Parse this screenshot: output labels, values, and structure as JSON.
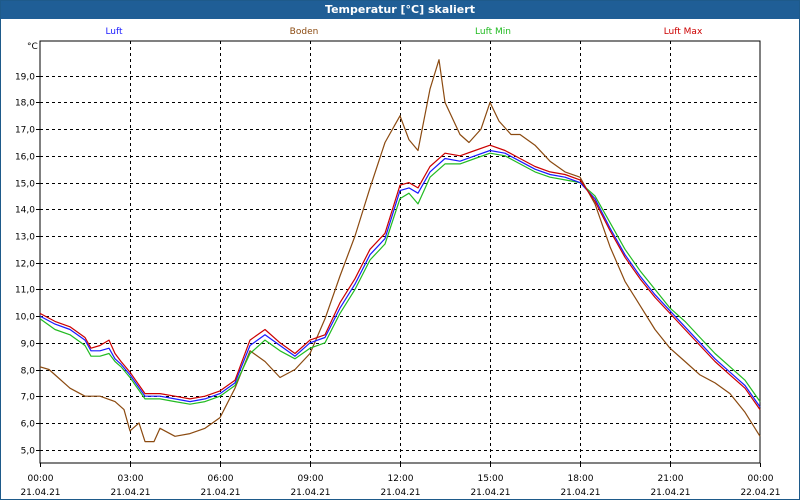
{
  "window": {
    "title": "Temperatur [°C] skaliert"
  },
  "chart_data": {
    "type": "line",
    "title": "Temperatur [°C] skaliert",
    "ylabel": "°C",
    "xlabel": "",
    "ylim": [
      4.5,
      20.3
    ],
    "xlim": [
      0,
      24
    ],
    "yticks": [
      5.0,
      6.0,
      7.0,
      8.0,
      9.0,
      10.0,
      11.0,
      12.0,
      13.0,
      14.0,
      15.0,
      16.0,
      17.0,
      18.0,
      19.0
    ],
    "ytick_labels": [
      "5,0",
      "6,0",
      "7,0",
      "8,0",
      "9,0",
      "10,0",
      "11,0",
      "12,0",
      "13,0",
      "14,0",
      "15,0",
      "16,0",
      "17,0",
      "18,0",
      "19,0"
    ],
    "xticks": [
      0,
      3,
      6,
      9,
      12,
      15,
      18,
      21,
      24
    ],
    "xtick_time_labels": [
      "00:00",
      "03:00",
      "06:00",
      "09:00",
      "12:00",
      "15:00",
      "18:00",
      "21:00",
      "00:00"
    ],
    "xtick_date_labels": [
      "21.04.21",
      "21.04.21",
      "21.04.21",
      "21.04.21",
      "21.04.21",
      "21.04.21",
      "21.04.21",
      "21.04.21",
      "22.04.21"
    ],
    "grid": true,
    "legend_position": "top",
    "colors": {
      "Luft": "#1a1aff",
      "Boden": "#8b4a10",
      "Luft Min": "#22bb22",
      "Luft Max": "#cc0000"
    },
    "series": [
      {
        "name": "Luft",
        "x": [
          0,
          0.5,
          1,
          1.5,
          1.7,
          2,
          2.3,
          2.5,
          2.7,
          3,
          3.5,
          4,
          4.5,
          5,
          5.5,
          6,
          6.5,
          7,
          7.5,
          8,
          8.5,
          9,
          9.5,
          10,
          10.5,
          11,
          11.5,
          12,
          12.3,
          12.6,
          12.8,
          13,
          13.5,
          14,
          14.5,
          15,
          15.5,
          16,
          16.5,
          17,
          17.5,
          18,
          18.5,
          19,
          19.5,
          20,
          20.5,
          21,
          21.5,
          22,
          22.5,
          23,
          23.5,
          24
        ],
        "values": [
          10.0,
          9.7,
          9.5,
          9.1,
          8.7,
          8.7,
          8.8,
          8.4,
          8.2,
          7.8,
          7.0,
          7.0,
          6.9,
          6.8,
          6.9,
          7.1,
          7.5,
          8.9,
          9.3,
          8.9,
          8.5,
          9.0,
          9.2,
          10.3,
          11.2,
          12.3,
          12.9,
          14.7,
          14.8,
          14.6,
          15.0,
          15.4,
          15.9,
          15.8,
          16.0,
          16.2,
          16.1,
          15.8,
          15.5,
          15.3,
          15.2,
          15.0,
          14.4,
          13.3,
          12.3,
          11.5,
          10.8,
          10.2,
          9.6,
          9.0,
          8.4,
          7.9,
          7.4,
          6.6
        ]
      },
      {
        "name": "Boden",
        "x": [
          0,
          0.3,
          0.6,
          1,
          1.5,
          2,
          2.5,
          2.8,
          3,
          3.3,
          3.5,
          3.8,
          4,
          4.5,
          5,
          5.5,
          6,
          6.5,
          7,
          7.5,
          8,
          8.5,
          9,
          9.5,
          10,
          10.5,
          11,
          11.5,
          12,
          12.3,
          12.6,
          13,
          13.3,
          13.5,
          14,
          14.3,
          14.7,
          15,
          15.3,
          15.7,
          16,
          16.5,
          17,
          17.5,
          18,
          18.5,
          19,
          19.5,
          20,
          20.5,
          21,
          21.5,
          22,
          22.5,
          23,
          23.5,
          24
        ],
        "values": [
          8.1,
          8.0,
          7.7,
          7.3,
          7.0,
          7.0,
          6.8,
          6.5,
          5.7,
          6.0,
          5.3,
          5.3,
          5.8,
          5.5,
          5.6,
          5.8,
          6.2,
          7.3,
          8.7,
          8.3,
          7.7,
          8.0,
          8.6,
          9.9,
          11.5,
          13.0,
          14.8,
          16.5,
          17.5,
          16.6,
          16.2,
          18.5,
          19.6,
          18.0,
          16.8,
          16.5,
          17.0,
          18.0,
          17.3,
          16.8,
          16.8,
          16.4,
          15.8,
          15.4,
          15.2,
          14.2,
          12.6,
          11.3,
          10.4,
          9.5,
          8.8,
          8.3,
          7.8,
          7.5,
          7.1,
          6.4,
          5.5
        ]
      },
      {
        "name": "Luft Min",
        "x": [
          0,
          0.5,
          1,
          1.5,
          1.7,
          2,
          2.3,
          2.5,
          2.7,
          3,
          3.5,
          4,
          4.5,
          5,
          5.5,
          6,
          6.5,
          7,
          7.5,
          8,
          8.5,
          9,
          9.5,
          10,
          10.5,
          11,
          11.5,
          12,
          12.3,
          12.6,
          12.8,
          13,
          13.5,
          14,
          14.5,
          15,
          15.5,
          16,
          16.5,
          17,
          17.5,
          18,
          18.5,
          19,
          19.5,
          20,
          20.5,
          21,
          21.5,
          22,
          22.5,
          23,
          23.5,
          24
        ],
        "values": [
          9.9,
          9.5,
          9.3,
          8.9,
          8.5,
          8.5,
          8.6,
          8.3,
          8.1,
          7.7,
          6.9,
          6.9,
          6.8,
          6.7,
          6.8,
          7.0,
          7.4,
          8.6,
          9.1,
          8.7,
          8.4,
          8.8,
          9.0,
          10.1,
          11.0,
          12.1,
          12.7,
          14.4,
          14.6,
          14.2,
          14.7,
          15.2,
          15.7,
          15.7,
          15.9,
          16.1,
          16.0,
          15.7,
          15.4,
          15.2,
          15.1,
          15.0,
          14.5,
          13.5,
          12.5,
          11.7,
          11.0,
          10.3,
          9.8,
          9.2,
          8.6,
          8.1,
          7.6,
          6.8
        ]
      },
      {
        "name": "Luft Max",
        "x": [
          0,
          0.5,
          1,
          1.5,
          1.7,
          2,
          2.3,
          2.5,
          2.7,
          3,
          3.5,
          4,
          4.5,
          5,
          5.5,
          6,
          6.5,
          7,
          7.5,
          8,
          8.5,
          9,
          9.5,
          10,
          10.5,
          11,
          11.5,
          12,
          12.3,
          12.6,
          12.8,
          13,
          13.5,
          14,
          14.5,
          15,
          15.5,
          16,
          16.5,
          17,
          17.5,
          18,
          18.5,
          19,
          19.5,
          20,
          20.5,
          21,
          21.5,
          22,
          22.5,
          23,
          23.5,
          24
        ],
        "values": [
          10.1,
          9.8,
          9.6,
          9.2,
          8.8,
          8.9,
          9.1,
          8.6,
          8.3,
          7.9,
          7.1,
          7.1,
          7.0,
          6.9,
          7.0,
          7.2,
          7.6,
          9.1,
          9.5,
          9.0,
          8.6,
          9.1,
          9.3,
          10.5,
          11.4,
          12.5,
          13.1,
          14.9,
          15.0,
          14.8,
          15.2,
          15.6,
          16.1,
          16.0,
          16.2,
          16.4,
          16.2,
          15.9,
          15.6,
          15.4,
          15.3,
          15.1,
          14.3,
          13.2,
          12.2,
          11.4,
          10.7,
          10.1,
          9.5,
          8.9,
          8.3,
          7.8,
          7.3,
          6.5
        ]
      }
    ]
  }
}
